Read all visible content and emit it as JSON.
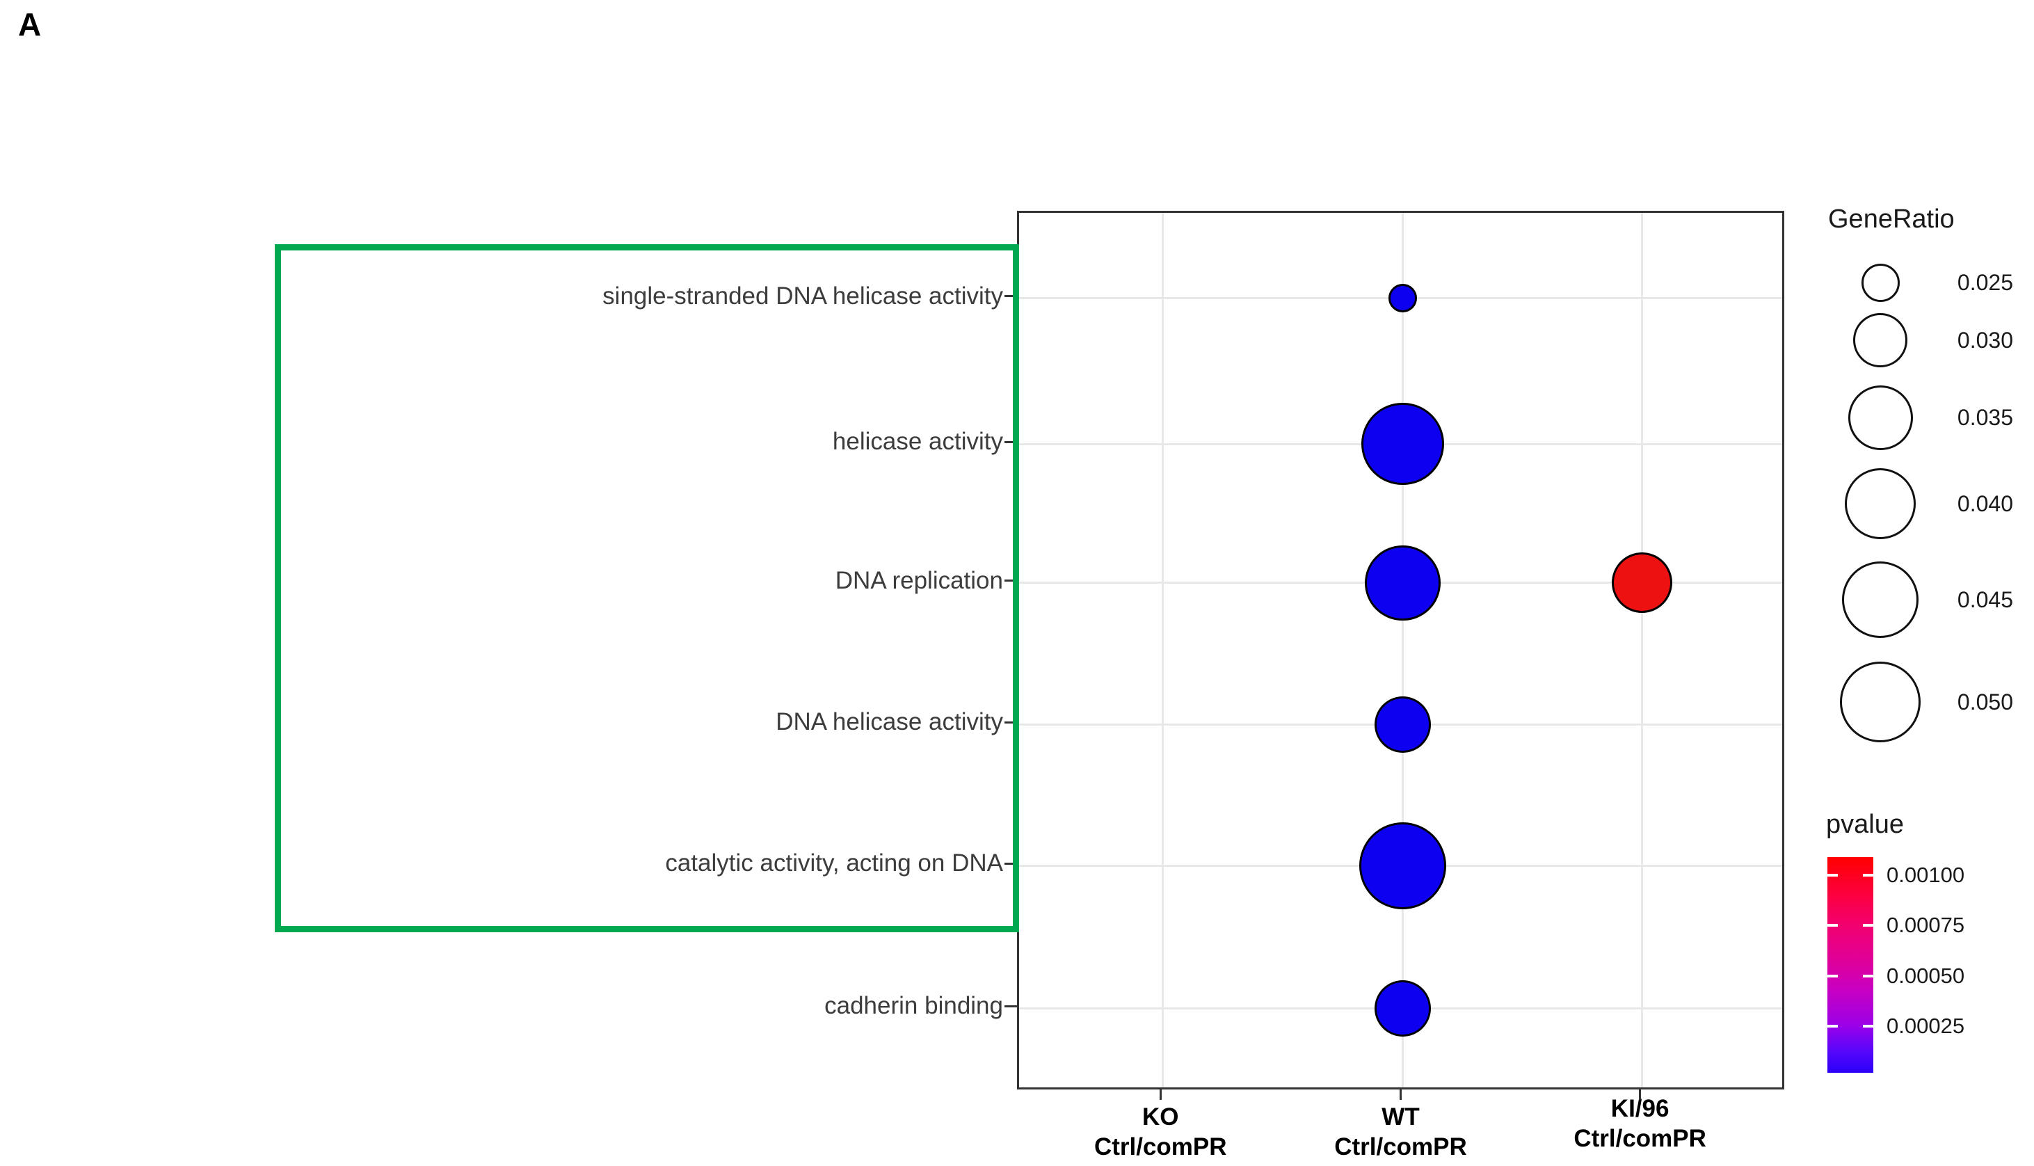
{
  "panel_label": "A",
  "chart_data": {
    "type": "scatter",
    "title": "",
    "x_categories": [
      [
        "KO",
        "Ctrl/comPR"
      ],
      [
        "WT",
        "Ctrl/comPR"
      ],
      [
        "KI/96",
        "Ctrl/comPR"
      ]
    ],
    "y_categories": [
      "single-stranded DNA helicase activity",
      "helicase activity",
      "DNA replication",
      "DNA helicase activity",
      "catalytic activity, acting on DNA",
      "cadherin binding"
    ],
    "points": [
      {
        "x": "WT",
        "y": "single-stranded DNA helicase activity",
        "gene_ratio": 0.022,
        "pvalue": 5e-05
      },
      {
        "x": "WT",
        "y": "helicase activity",
        "gene_ratio": 0.052,
        "pvalue": 5e-05
      },
      {
        "x": "WT",
        "y": "DNA replication",
        "gene_ratio": 0.044,
        "pvalue": 5e-05
      },
      {
        "x": "KI/96",
        "y": "DNA replication",
        "gene_ratio": 0.033,
        "pvalue": 0.001
      },
      {
        "x": "WT",
        "y": "DNA helicase activity",
        "gene_ratio": 0.031,
        "pvalue": 5e-05
      },
      {
        "x": "WT",
        "y": "catalytic activity, acting on DNA",
        "gene_ratio": 0.058,
        "pvalue": 5e-05
      },
      {
        "x": "WT",
        "y": "cadherin binding",
        "gene_ratio": 0.031,
        "pvalue": 5e-05
      }
    ],
    "colors": {
      "low_pvalue": "#0d00f0",
      "high_pvalue": "#ee1111",
      "highlight_box": "#00a94f"
    },
    "legend_gene_ratio": {
      "title": "GeneRatio",
      "values": [
        0.025,
        0.03,
        0.035,
        0.04,
        0.045,
        0.05
      ],
      "labels": [
        "0.025",
        "0.030",
        "0.035",
        "0.040",
        "0.045",
        "0.050"
      ]
    },
    "legend_pvalue": {
      "title": "pvalue",
      "ticks": [
        0.001,
        0.00075,
        0.0005,
        0.00025
      ],
      "labels": [
        "0.00100",
        "0.00075",
        "0.00050",
        "0.00025"
      ]
    },
    "layout_hints": {
      "grid": true,
      "legend_position": "right",
      "highlighted_rows": [
        0,
        4
      ]
    }
  }
}
